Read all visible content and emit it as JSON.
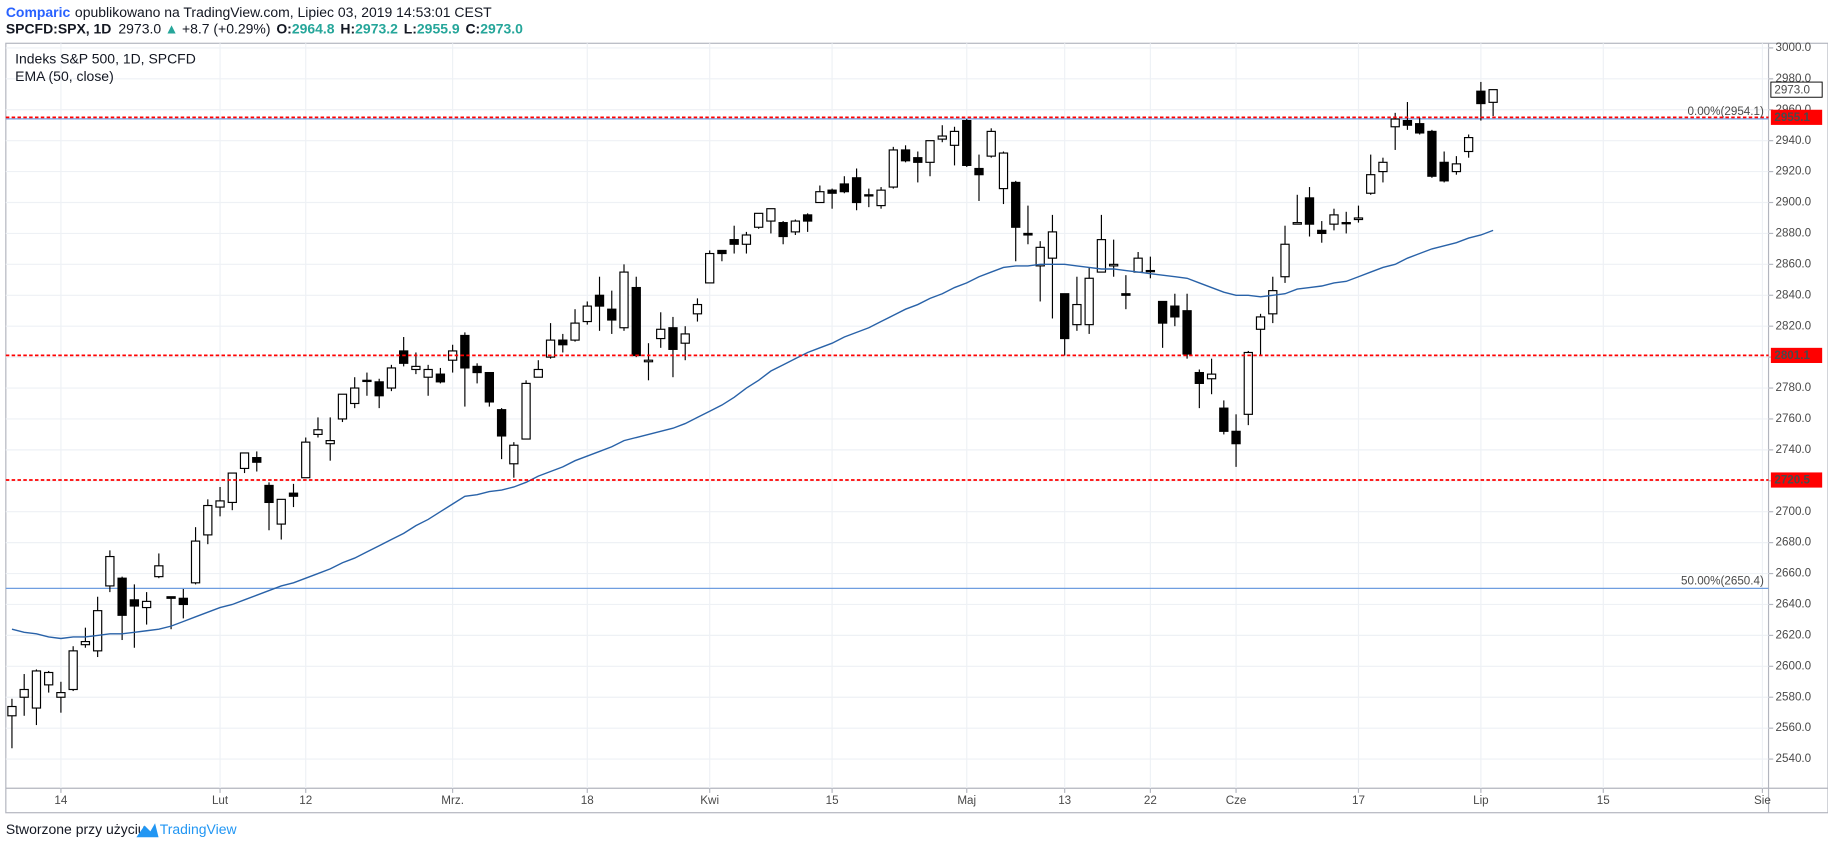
{
  "header": {
    "publisher": "Comparic",
    "published": "opublikowano na TradingView.com, Lipiec 03, 2019 14:53:01 CEST",
    "symbol": "SPCFD:SPX, 1D",
    "price": "2973.0",
    "arrow": "▲",
    "change": "+8.7 (+0.29%)",
    "o_label": "O:",
    "o_value": "2964.8",
    "h_label": "H:",
    "h_value": "2973.2",
    "l_label": "L:",
    "l_value": "2955.9",
    "c_label": "C:",
    "c_value": "2973.0"
  },
  "footer": {
    "text": "Stworzone przy użyciu",
    "brand": "TradingView"
  },
  "chart_data": {
    "type": "candlestick",
    "title": "Indeks S&P 500, 1D, SPCFD",
    "up_color": "#ffffff",
    "down_color": "#000000",
    "open": [
      2568,
      2580,
      2573,
      2588,
      2580,
      2585,
      2614,
      2610,
      2652,
      2657,
      2643,
      2638,
      2658,
      2645,
      2644,
      2654,
      2685,
      2703,
      2706,
      2728,
      2735,
      2717,
      2692,
      2712,
      2722,
      2750,
      2744,
      2760,
      2770,
      2785,
      2784,
      2780,
      2804,
      2792,
      2787,
      2789,
      2798,
      2814,
      2794,
      2790,
      2766,
      2731,
      2747,
      2787,
      2800,
      2811,
      2811,
      2823,
      2840,
      2831,
      2819,
      2845,
      2797,
      2812,
      2819,
      2809,
      2828,
      2848,
      2869,
      2876,
      2873,
      2884,
      2888,
      2887,
      2881,
      2892,
      2900,
      2908,
      2912,
      2916,
      2905,
      2898,
      2910,
      2934,
      2929,
      2926,
      2941,
      2937,
      2953,
      2922,
      2930,
      2909,
      2913,
      2880,
      2859,
      2864,
      2841,
      2821,
      2821,
      2855,
      2859,
      2841,
      2855,
      2856,
      2836,
      2833,
      2830,
      2790,
      2786,
      2767,
      2752,
      2763,
      2818,
      2828,
      2852,
      2886,
      2903,
      2882,
      2886,
      2887,
      2889,
      2906,
      2920,
      2949,
      2953,
      2951,
      2946,
      2926,
      2920,
      2933,
      2972,
      2964.8
    ],
    "high": [
      2579,
      2595,
      2598,
      2597,
      2590,
      2613,
      2625,
      2645,
      2675,
      2658,
      2653,
      2648,
      2673,
      2645,
      2650,
      2690,
      2708,
      2716,
      2725,
      2738,
      2739,
      2719,
      2708,
      2718,
      2748,
      2761,
      2761,
      2776,
      2787,
      2790,
      2786,
      2795,
      2813,
      2803,
      2795,
      2793,
      2808,
      2816,
      2796,
      2790,
      2767,
      2745,
      2785,
      2798,
      2822,
      2815,
      2831,
      2836,
      2852,
      2843,
      2860,
      2852,
      2809,
      2829,
      2826,
      2820,
      2838,
      2869,
      2869,
      2885,
      2881,
      2893,
      2896,
      2888,
      2889,
      2893,
      2911,
      2909,
      2917,
      2922,
      2909,
      2910,
      2936,
      2937,
      2933,
      2940,
      2950,
      2949,
      2954,
      2931,
      2948,
      2933,
      2914,
      2898,
      2875,
      2892,
      2841,
      2852,
      2858,
      2892,
      2876,
      2853,
      2868,
      2865,
      2836,
      2841,
      2841,
      2792,
      2799,
      2772,
      2763,
      2804,
      2828,
      2852,
      2885,
      2905,
      2910,
      2888,
      2896,
      2894,
      2898,
      2931,
      2929,
      2958,
      2965,
      2955,
      2947,
      2933,
      2930,
      2944,
      2978,
      2973.2
    ],
    "low": [
      2547,
      2568,
      2562,
      2583,
      2570,
      2584,
      2612,
      2606,
      2648,
      2617,
      2612,
      2627,
      2657,
      2624,
      2631,
      2653,
      2679,
      2697,
      2701,
      2725,
      2726,
      2688,
      2682,
      2703,
      2722,
      2748,
      2733,
      2758,
      2767,
      2775,
      2767,
      2778,
      2794,
      2789,
      2775,
      2783,
      2790,
      2768,
      2783,
      2768,
      2734,
      2722,
      2747,
      2787,
      2799,
      2803,
      2810,
      2821,
      2817,
      2815,
      2817,
      2800,
      2785,
      2806,
      2787,
      2798,
      2823,
      2848,
      2862,
      2867,
      2867,
      2883,
      2880,
      2873,
      2879,
      2881,
      2900,
      2896,
      2906,
      2895,
      2897,
      2896,
      2909,
      2926,
      2913,
      2917,
      2939,
      2924,
      2923,
      2901,
      2929,
      2899,
      2862,
      2873,
      2836,
      2825,
      2801,
      2817,
      2815,
      2855,
      2852,
      2831,
      2855,
      2851,
      2806,
      2820,
      2799,
      2767,
      2776,
      2750,
      2729,
      2756,
      2801,
      2822,
      2848,
      2886,
      2878,
      2874,
      2882,
      2880,
      2887,
      2905,
      2913,
      2934,
      2947,
      2944,
      2916,
      2913,
      2918,
      2929,
      2953,
      2955.9
    ],
    "close": [
      2574,
      2585,
      2597,
      2596,
      2583,
      2610,
      2616,
      2636,
      2671,
      2633,
      2639,
      2642,
      2665,
      2644,
      2640,
      2681,
      2704,
      2707,
      2725,
      2738,
      2732,
      2706,
      2708,
      2710,
      2745,
      2753,
      2746,
      2776,
      2780,
      2785,
      2775,
      2793,
      2796,
      2794,
      2792,
      2784,
      2804,
      2793,
      2790,
      2771,
      2749,
      2743,
      2783,
      2792,
      2811,
      2808,
      2822,
      2833,
      2833,
      2824,
      2855,
      2801,
      2798,
      2818,
      2805,
      2815,
      2834,
      2867,
      2867,
      2873,
      2879,
      2893,
      2896,
      2878,
      2888,
      2888,
      2907,
      2906,
      2907,
      2900,
      2905,
      2908,
      2934,
      2927,
      2926,
      2940,
      2943,
      2946,
      2924,
      2918,
      2946,
      2932,
      2884,
      2879,
      2871,
      2881,
      2812,
      2834,
      2851,
      2876,
      2860,
      2840,
      2864,
      2856,
      2822,
      2826,
      2802,
      2783,
      2789,
      2752,
      2744,
      2803,
      2826,
      2843,
      2873,
      2887,
      2886,
      2880,
      2892,
      2887,
      2890,
      2918,
      2926,
      2954,
      2950,
      2945,
      2917,
      2914,
      2925,
      2942,
      2964,
      2973.0
    ],
    "series": [
      {
        "name": "EMA (50, close)",
        "color": "#2962a8",
        "values": [
          2624,
          2622,
          2621,
          2619,
          2618,
          2619,
          2619,
          2620,
          2621,
          2621,
          2622,
          2623,
          2624,
          2626,
          2629,
          2632,
          2635,
          2638,
          2640,
          2643,
          2646,
          2649,
          2652,
          2654,
          2657,
          2660,
          2663,
          2667,
          2670,
          2674,
          2678,
          2682,
          2686,
          2691,
          2695,
          2700,
          2705,
          2710,
          2711,
          2713,
          2714,
          2716,
          2719,
          2723,
          2726,
          2729,
          2733,
          2736,
          2739,
          2742,
          2746,
          2748,
          2750,
          2752,
          2754,
          2757,
          2761,
          2765,
          2769,
          2774,
          2780,
          2785,
          2791,
          2795,
          2799,
          2803,
          2806,
          2809,
          2813,
          2816,
          2819,
          2823,
          2827,
          2831,
          2834,
          2838,
          2841,
          2845,
          2848,
          2852,
          2855,
          2858,
          2859,
          2859,
          2860,
          2860,
          2860,
          2859,
          2858,
          2857,
          2857,
          2856,
          2855,
          2854,
          2853,
          2852,
          2851,
          2848,
          2845,
          2842,
          2840,
          2840,
          2839,
          2840,
          2841,
          2844,
          2845,
          2846,
          2848,
          2849,
          2852,
          2855,
          2858,
          2860,
          2864,
          2867,
          2870,
          2872,
          2874,
          2877,
          2879,
          2882
        ]
      }
    ],
    "hlines": [
      {
        "value": 2955.1,
        "color": "#ff0000"
      },
      {
        "value": 2801.1,
        "color": "#ff0000"
      },
      {
        "value": 2720.5,
        "color": "#ff0000"
      }
    ],
    "fib_levels": [
      {
        "value": 2954.1,
        "label": "0.00%(2954.1)",
        "color": "#6f9ee0"
      },
      {
        "value": 2650.4,
        "label": "50.00%(2650.4)",
        "color": "#6f9ee0"
      }
    ],
    "last_price": {
      "value": 2973.0,
      "label": "2973.0"
    },
    "grid": true,
    "xlim": [
      -0.5,
      143.5
    ],
    "xticks": [
      {
        "value": 4,
        "label": "14"
      },
      {
        "value": 17,
        "label": "Lut"
      },
      {
        "value": 24,
        "label": "12"
      },
      {
        "value": 36,
        "label": "Mrz."
      },
      {
        "value": 47,
        "label": "18"
      },
      {
        "value": 57,
        "label": "Kwi"
      },
      {
        "value": 67,
        "label": "15"
      },
      {
        "value": 78,
        "label": "Maj"
      },
      {
        "value": 86,
        "label": "13"
      },
      {
        "value": 93,
        "label": "22"
      },
      {
        "value": 100,
        "label": "Cze"
      },
      {
        "value": 110,
        "label": "17"
      },
      {
        "value": 120,
        "label": "Lip"
      },
      {
        "value": 130,
        "label": "15"
      },
      {
        "value": 143,
        "label": "Sie"
      }
    ],
    "ylim": [
      2505.3,
      3003
    ],
    "yticks": [
      {
        "value": 2540,
        "label": "2540.0"
      },
      {
        "value": 2560,
        "label": "2560.0"
      },
      {
        "value": 2580,
        "label": "2580.0"
      },
      {
        "value": 2600,
        "label": "2600.0"
      },
      {
        "value": 2620,
        "label": "2620.0"
      },
      {
        "value": 2640,
        "label": "2640.0"
      },
      {
        "value": 2660,
        "label": "2660.0"
      },
      {
        "value": 2680,
        "label": "2680.0"
      },
      {
        "value": 2700,
        "label": "2700.0"
      },
      {
        "value": 2720,
        "label": "2720.0"
      },
      {
        "value": 2740,
        "label": "2740.0"
      },
      {
        "value": 2760,
        "label": "2760.0"
      },
      {
        "value": 2780,
        "label": "2780.0"
      },
      {
        "value": 2800,
        "label": "2800.0"
      },
      {
        "value": 2820,
        "label": "2820.0"
      },
      {
        "value": 2840,
        "label": "2840.0"
      },
      {
        "value": 2860,
        "label": "2860.0"
      },
      {
        "value": 2880,
        "label": "2880.0"
      },
      {
        "value": 2900,
        "label": "2900.0"
      },
      {
        "value": 2920,
        "label": "2920.0"
      },
      {
        "value": 2940,
        "label": "2940.0"
      },
      {
        "value": 2960,
        "label": "2960.0"
      },
      {
        "value": 2980,
        "label": "2980.0"
      },
      {
        "value": 3000,
        "label": "3000.0"
      }
    ]
  }
}
